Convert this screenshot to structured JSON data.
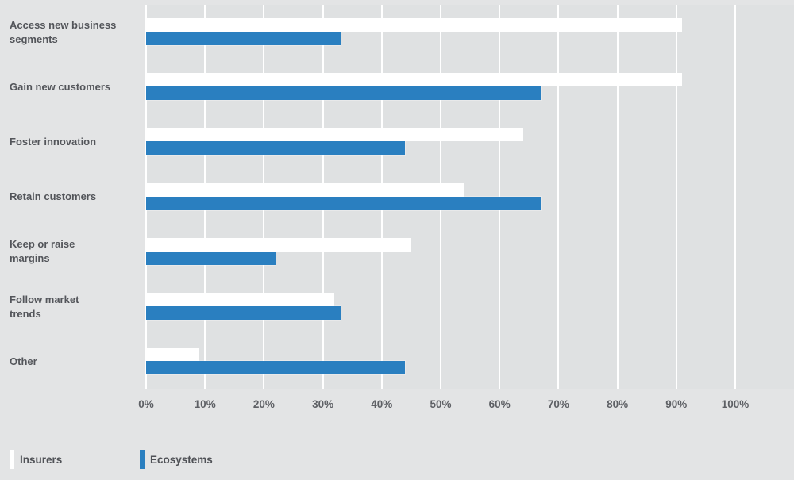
{
  "chart_data": {
    "type": "bar",
    "orientation": "horizontal",
    "title": "",
    "categories": [
      "Access new business\nsegments",
      "Gain new customers",
      "Foster innovation",
      "Retain customers",
      "Keep or raise\nmargins",
      "Follow market\ntrends",
      "Other"
    ],
    "series": [
      {
        "name": "Insurers",
        "color": "#ffffff",
        "values": [
          91,
          91,
          64,
          54,
          45,
          32,
          9
        ]
      },
      {
        "name": "Ecosystems",
        "color": "#2a7fc0",
        "values": [
          33,
          67,
          44,
          67,
          22,
          33,
          44
        ]
      }
    ],
    "x_axis": {
      "min": 0,
      "max": 100,
      "step": 10,
      "unit": "%",
      "tick_labels": [
        "0%",
        "10%",
        "20%",
        "30%",
        "40%",
        "50%",
        "60%",
        "70%",
        "80%",
        "90%",
        "100%"
      ]
    },
    "legend": {
      "position": "bottom-left",
      "items": [
        {
          "label": "Insurers",
          "color": "#ffffff"
        },
        {
          "label": "Ecosystems",
          "color": "#2a7fc0"
        }
      ]
    },
    "grid": {
      "vertical": true,
      "color": "#ffffff"
    },
    "colors": {
      "page_background": "#e3e4e5",
      "plot_background": "#dfe1e2",
      "category_text": "#53555a",
      "tick_text": "#5e6065"
    }
  }
}
